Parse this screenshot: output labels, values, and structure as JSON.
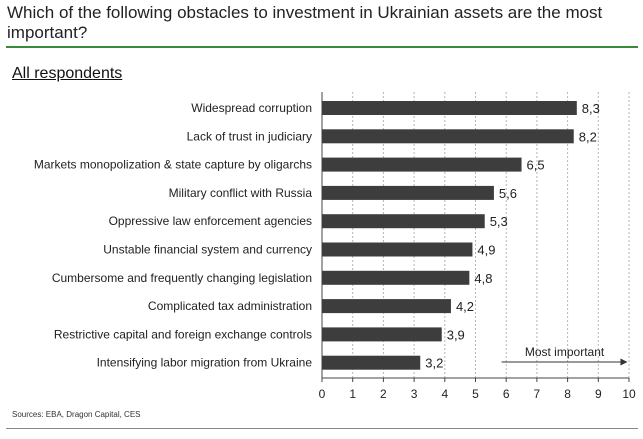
{
  "page": {
    "title": "Which of the following obstacles to investment in Ukrainian assets are the most important?",
    "subtitle": "All respondents",
    "source": "Sources: EBA, Dragon Capital, CES"
  },
  "colors": {
    "bar": "#3d3d3d",
    "rule": "#3a8a3a",
    "grid": "#b5b5b5",
    "text": "#222222"
  },
  "chart_data": {
    "type": "bar",
    "orientation": "horizontal",
    "categories": [
      "Widespread corruption",
      "Lack of trust in judiciary",
      "Markets monopolization & state capture by oligarchs",
      "Military conflict with Russia",
      "Oppressive law enforcement agencies",
      "Unstable financial system and currency",
      "Cumbersome and frequently changing legislation",
      "Complicated tax administration",
      "Restrictive capital and foreign exchange controls",
      "Intensifying labor migration from Ukraine"
    ],
    "values": [
      8.3,
      8.2,
      6.5,
      5.6,
      5.3,
      4.9,
      4.8,
      4.2,
      3.9,
      3.2
    ],
    "value_labels": [
      "8,3",
      "8,2",
      "6,5",
      "5,6",
      "5,3",
      "4,9",
      "4,8",
      "4,2",
      "3,9",
      "3,2"
    ],
    "xlim": [
      0,
      10
    ],
    "xticks": [
      "0",
      "1",
      "2",
      "3",
      "4",
      "5",
      "6",
      "7",
      "8",
      "9",
      "10"
    ],
    "grid": "vertical dotted",
    "annotation": "Most important",
    "title": "Which of the following obstacles to investment in Ukrainian assets are the most important?",
    "subtitle": "All respondents"
  }
}
